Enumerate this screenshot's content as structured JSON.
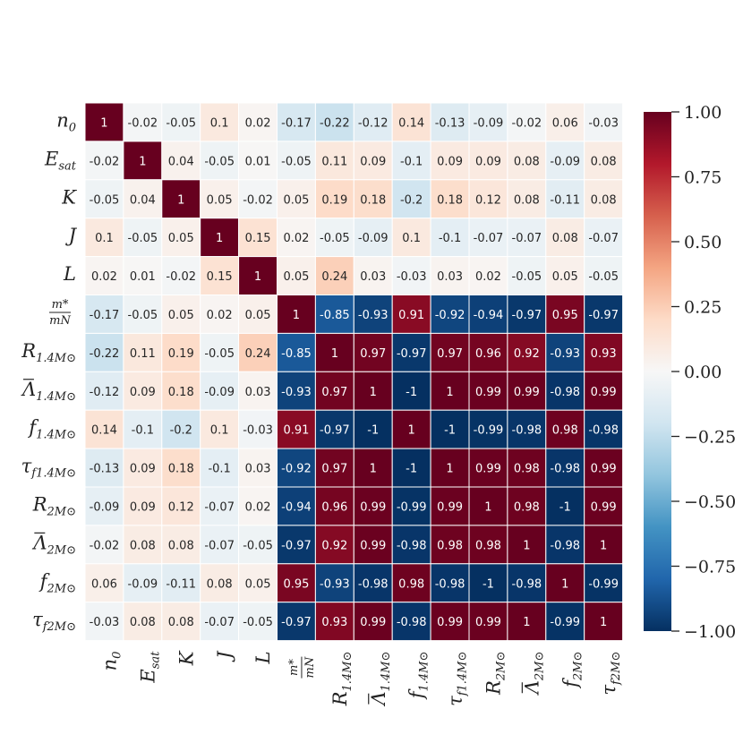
{
  "chart_data": {
    "type": "heatmap",
    "title": "",
    "labels": [
      {
        "base": "n",
        "sub": "0",
        "kind": "plain"
      },
      {
        "base": "E",
        "sub": "sat",
        "kind": "plain"
      },
      {
        "base": "K",
        "sub": "",
        "kind": "plain"
      },
      {
        "base": "J",
        "sub": "",
        "kind": "plain"
      },
      {
        "base": "L",
        "sub": "",
        "kind": "plain"
      },
      {
        "base": "m*",
        "sub": "m_N",
        "kind": "frac"
      },
      {
        "base": "R",
        "sub": "1.4M⊙",
        "kind": "plain"
      },
      {
        "base": "Λ",
        "sub": "1.4M⊙",
        "kind": "bar"
      },
      {
        "base": "f",
        "sub": "1.4M⊙",
        "kind": "plain"
      },
      {
        "base": "τ",
        "sub": "f1.4M⊙",
        "kind": "plain"
      },
      {
        "base": "R",
        "sub": "2M⊙",
        "kind": "plain"
      },
      {
        "base": "Λ",
        "sub": "2M⊙",
        "kind": "bar"
      },
      {
        "base": "f",
        "sub": "2M⊙",
        "kind": "plain"
      },
      {
        "base": "τ",
        "sub": "f2M⊙",
        "kind": "plain"
      }
    ],
    "matrix": [
      [
        1,
        -0.02,
        -0.05,
        0.1,
        0.02,
        -0.17,
        -0.22,
        -0.12,
        0.14,
        -0.13,
        -0.09,
        -0.02,
        0.06,
        -0.03
      ],
      [
        -0.02,
        1,
        0.04,
        -0.05,
        0.01,
        -0.05,
        0.11,
        0.09,
        -0.1,
        0.09,
        0.09,
        0.08,
        -0.09,
        0.08
      ],
      [
        -0.05,
        0.04,
        1,
        0.05,
        -0.02,
        0.05,
        0.19,
        0.18,
        -0.2,
        0.18,
        0.12,
        0.08,
        -0.11,
        0.08
      ],
      [
        0.1,
        -0.05,
        0.05,
        1,
        0.15,
        0.02,
        -0.05,
        -0.09,
        0.1,
        -0.1,
        -0.07,
        -0.07,
        0.08,
        -0.07
      ],
      [
        0.02,
        0.01,
        -0.02,
        0.15,
        1,
        0.05,
        0.24,
        0.03,
        -0.03,
        0.03,
        0.02,
        -0.05,
        0.05,
        -0.05
      ],
      [
        -0.17,
        -0.05,
        0.05,
        0.02,
        0.05,
        1,
        -0.85,
        -0.93,
        0.91,
        -0.92,
        -0.94,
        -0.97,
        0.95,
        -0.97
      ],
      [
        -0.22,
        0.11,
        0.19,
        -0.05,
        0.24,
        -0.85,
        1,
        0.97,
        -0.97,
        0.97,
        0.96,
        0.92,
        -0.93,
        0.93
      ],
      [
        -0.12,
        0.09,
        0.18,
        -0.09,
        0.03,
        -0.93,
        0.97,
        1,
        -1,
        1,
        0.99,
        0.99,
        -0.98,
        0.99
      ],
      [
        0.14,
        -0.1,
        -0.2,
        0.1,
        -0.03,
        0.91,
        -0.97,
        -1,
        1,
        -1,
        -0.99,
        -0.98,
        0.98,
        -0.98
      ],
      [
        -0.13,
        0.09,
        0.18,
        -0.1,
        0.03,
        -0.92,
        0.97,
        1,
        -1,
        1,
        0.99,
        0.98,
        -0.98,
        0.99
      ],
      [
        -0.09,
        0.09,
        0.12,
        -0.07,
        0.02,
        -0.94,
        0.96,
        0.99,
        -0.99,
        0.99,
        1,
        0.98,
        -1,
        0.99
      ],
      [
        -0.02,
        0.08,
        0.08,
        -0.07,
        -0.05,
        -0.97,
        0.92,
        0.99,
        -0.98,
        0.98,
        0.98,
        1,
        -0.98,
        1
      ],
      [
        0.06,
        -0.09,
        -0.11,
        0.08,
        0.05,
        0.95,
        -0.93,
        -0.98,
        0.98,
        -0.98,
        -1,
        -0.98,
        1,
        -0.99
      ],
      [
        -0.03,
        0.08,
        0.08,
        -0.07,
        -0.05,
        -0.97,
        0.93,
        0.99,
        -0.98,
        0.99,
        0.99,
        1,
        -0.99,
        1
      ]
    ],
    "colorbar": {
      "range": [
        -1,
        1
      ],
      "ticks": [
        "1.00",
        "0.75",
        "0.50",
        "0.25",
        "0.00",
        "−0.25",
        "−0.50",
        "−0.75",
        "−1.00"
      ],
      "colormap": "RdBu_r",
      "stops": [
        "#053061",
        "#2166ac",
        "#4393c3",
        "#92c5de",
        "#d1e5f0",
        "#f7f7f7",
        "#fddbc7",
        "#f4a582",
        "#d6604d",
        "#b2182b",
        "#67001f"
      ]
    },
    "grid": false,
    "legend": "right"
  }
}
